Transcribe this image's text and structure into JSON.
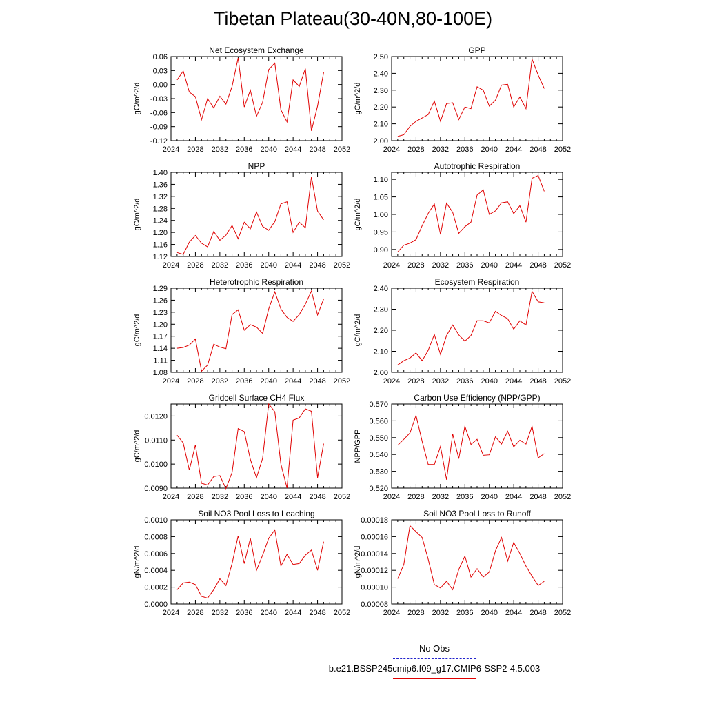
{
  "title": "Tibetan Plateau(30-40N,80-100E)",
  "legend": {
    "obs_label": "No Obs",
    "model_label": "b.e21.BSSP245cmip6.f09_g17.CMIP6-SSP2-4.5.003",
    "model_color": "#e00000",
    "obs_color": "#2222cc"
  },
  "chart_data": [
    {
      "type": "line",
      "title": "Net Ecosystem Exchange",
      "ylabel": "gC/m^2/d",
      "xlim": [
        2024,
        2052
      ],
      "xticks": [
        "2024",
        "2028",
        "2032",
        "2036",
        "2040",
        "2044",
        "2048",
        "2052"
      ],
      "ylim": [
        -0.12,
        0.06
      ],
      "yticks": [
        "-0.12",
        "-0.09",
        "-0.06",
        "-0.03",
        "0.00",
        "0.03",
        "0.06"
      ],
      "x": [
        2025,
        2026,
        2027,
        2028,
        2029,
        2030,
        2031,
        2032,
        2033,
        2034,
        2035,
        2036,
        2037,
        2038,
        2039,
        2040,
        2041,
        2042,
        2043,
        2044,
        2045,
        2046,
        2047,
        2048,
        2049
      ],
      "values": [
        0.01,
        0.029,
        -0.016,
        -0.026,
        -0.075,
        -0.03,
        -0.05,
        -0.025,
        -0.042,
        -0.004,
        0.057,
        -0.048,
        -0.012,
        -0.068,
        -0.038,
        0.032,
        0.046,
        -0.054,
        -0.08,
        0.01,
        -0.004,
        0.034,
        -0.099,
        -0.046,
        0.026
      ]
    },
    {
      "type": "line",
      "title": "GPP",
      "ylabel": "gC/m^2/d",
      "xlim": [
        2024,
        2052
      ],
      "xticks": [
        "2024",
        "2028",
        "2032",
        "2036",
        "2040",
        "2044",
        "2048",
        "2052"
      ],
      "ylim": [
        2.0,
        2.5
      ],
      "yticks": [
        "2.00",
        "2.10",
        "2.20",
        "2.30",
        "2.40",
        "2.50"
      ],
      "x": [
        2025,
        2026,
        2027,
        2028,
        2029,
        2030,
        2031,
        2032,
        2033,
        2034,
        2035,
        2036,
        2037,
        2038,
        2039,
        2040,
        2041,
        2042,
        2043,
        2044,
        2045,
        2046,
        2047,
        2048,
        2049
      ],
      "values": [
        2.025,
        2.035,
        2.085,
        2.115,
        2.135,
        2.155,
        2.235,
        2.115,
        2.22,
        2.225,
        2.125,
        2.2,
        2.19,
        2.32,
        2.3,
        2.205,
        2.24,
        2.33,
        2.335,
        2.2,
        2.26,
        2.19,
        2.485,
        2.39,
        2.31
      ]
    },
    {
      "type": "line",
      "title": "NPP",
      "ylabel": "gC/m^2/d",
      "xlim": [
        2024,
        2052
      ],
      "xticks": [
        "2024",
        "2028",
        "2032",
        "2036",
        "2040",
        "2044",
        "2048",
        "2052"
      ],
      "ylim": [
        1.12,
        1.4
      ],
      "yticks": [
        "1.12",
        "1.16",
        "1.20",
        "1.24",
        "1.28",
        "1.32",
        "1.36",
        "1.40"
      ],
      "x": [
        2025,
        2026,
        2027,
        2028,
        2029,
        2030,
        2031,
        2032,
        2033,
        2034,
        2035,
        2036,
        2037,
        2038,
        2039,
        2040,
        2041,
        2042,
        2043,
        2044,
        2045,
        2046,
        2047,
        2048,
        2049
      ],
      "values": [
        1.133,
        1.127,
        1.168,
        1.19,
        1.164,
        1.152,
        1.203,
        1.174,
        1.191,
        1.223,
        1.179,
        1.234,
        1.212,
        1.268,
        1.22,
        1.207,
        1.236,
        1.295,
        1.302,
        1.2,
        1.234,
        1.216,
        1.385,
        1.271,
        1.242
      ]
    },
    {
      "type": "line",
      "title": "Autotrophic Respiration",
      "ylabel": "gC/m^2/d",
      "xlim": [
        2024,
        2052
      ],
      "xticks": [
        "2024",
        "2028",
        "2032",
        "2036",
        "2040",
        "2044",
        "2048",
        "2052"
      ],
      "ylim": [
        0.88,
        1.12
      ],
      "yticks": [
        "0.90",
        "0.95",
        "1.00",
        "1.05",
        "1.10"
      ],
      "x": [
        2025,
        2026,
        2027,
        2028,
        2029,
        2030,
        2031,
        2032,
        2033,
        2034,
        2035,
        2036,
        2037,
        2038,
        2039,
        2040,
        2041,
        2042,
        2043,
        2044,
        2045,
        2046,
        2047,
        2048,
        2049
      ],
      "values": [
        0.893,
        0.912,
        0.918,
        0.928,
        0.968,
        1.003,
        1.03,
        0.943,
        1.032,
        1.006,
        0.946,
        0.965,
        0.978,
        1.055,
        1.07,
        1.0,
        1.01,
        1.033,
        1.036,
        1.002,
        1.025,
        0.978,
        1.103,
        1.111,
        1.066
      ]
    },
    {
      "type": "line",
      "title": "Heterotrophic Respiration",
      "ylabel": "gC/m^2/d",
      "xlim": [
        2024,
        2052
      ],
      "xticks": [
        "2024",
        "2028",
        "2032",
        "2036",
        "2040",
        "2044",
        "2048",
        "2052"
      ],
      "ylim": [
        1.08,
        1.29
      ],
      "yticks": [
        "1.08",
        "1.11",
        "1.14",
        "1.17",
        "1.20",
        "1.23",
        "1.26",
        "1.29"
      ],
      "x": [
        2025,
        2026,
        2027,
        2028,
        2029,
        2030,
        2031,
        2032,
        2033,
        2034,
        2035,
        2036,
        2037,
        2038,
        2039,
        2040,
        2041,
        2042,
        2043,
        2044,
        2045,
        2046,
        2047,
        2048,
        2049
      ],
      "values": [
        1.14,
        1.142,
        1.148,
        1.163,
        1.083,
        1.098,
        1.15,
        1.143,
        1.139,
        1.224,
        1.236,
        1.185,
        1.199,
        1.193,
        1.177,
        1.238,
        1.281,
        1.238,
        1.217,
        1.207,
        1.224,
        1.25,
        1.283,
        1.223,
        1.263
      ]
    },
    {
      "type": "line",
      "title": "Ecosystem Respiration",
      "ylabel": "gC/m^2/d",
      "xlim": [
        2024,
        2052
      ],
      "xticks": [
        "2024",
        "2028",
        "2032",
        "2036",
        "2040",
        "2044",
        "2048",
        "2052"
      ],
      "ylim": [
        2.0,
        2.4
      ],
      "yticks": [
        "2.00",
        "2.10",
        "2.20",
        "2.30",
        "2.40"
      ],
      "x": [
        2025,
        2026,
        2027,
        2028,
        2029,
        2030,
        2031,
        2032,
        2033,
        2034,
        2035,
        2036,
        2037,
        2038,
        2039,
        2040,
        2041,
        2042,
        2043,
        2044,
        2045,
        2046,
        2047,
        2048,
        2049
      ],
      "values": [
        2.035,
        2.055,
        2.068,
        2.092,
        2.055,
        2.105,
        2.18,
        2.085,
        2.175,
        2.225,
        2.178,
        2.148,
        2.175,
        2.245,
        2.245,
        2.235,
        2.29,
        2.27,
        2.255,
        2.205,
        2.245,
        2.225,
        2.385,
        2.335,
        2.33
      ]
    },
    {
      "type": "line",
      "title": "Gridcell Surface CH4 Flux",
      "ylabel": "gC/m^2/d",
      "xlim": [
        2024,
        2052
      ],
      "xticks": [
        "2024",
        "2028",
        "2032",
        "2036",
        "2040",
        "2044",
        "2048",
        "2052"
      ],
      "ylim": [
        0.009,
        0.0125
      ],
      "yticks": [
        "0.0090",
        "0.0100",
        "0.0110",
        "0.0120"
      ],
      "x": [
        2025,
        2026,
        2027,
        2028,
        2029,
        2030,
        2031,
        2032,
        2033,
        2034,
        2035,
        2036,
        2037,
        2038,
        2039,
        2040,
        2041,
        2042,
        2043,
        2044,
        2045,
        2046,
        2047,
        2048,
        2049
      ],
      "values": [
        0.0112,
        0.01088,
        0.00975,
        0.0108,
        0.0092,
        0.00913,
        0.00948,
        0.00952,
        0.00898,
        0.00965,
        0.01148,
        0.01135,
        0.0102,
        0.00943,
        0.01024,
        0.0125,
        0.01218,
        0.01,
        0.009,
        0.01183,
        0.01192,
        0.0123,
        0.0122,
        0.00943,
        0.01085
      ]
    },
    {
      "type": "line",
      "title": "Carbon Use Efficiency (NPP/GPP)",
      "ylabel": "NPP/GPP",
      "xlim": [
        2024,
        2052
      ],
      "xticks": [
        "2024",
        "2028",
        "2032",
        "2036",
        "2040",
        "2044",
        "2048",
        "2052"
      ],
      "ylim": [
        0.52,
        0.57
      ],
      "yticks": [
        "0.520",
        "0.530",
        "0.540",
        "0.550",
        "0.560",
        "0.570"
      ],
      "x": [
        2025,
        2026,
        2027,
        2028,
        2029,
        2030,
        2031,
        2032,
        2033,
        2034,
        2035,
        2036,
        2037,
        2038,
        2039,
        2040,
        2041,
        2042,
        2043,
        2044,
        2045,
        2046,
        2047,
        2048,
        2049
      ],
      "values": [
        0.5455,
        0.549,
        0.5528,
        0.5632,
        0.5478,
        0.534,
        0.534,
        0.5448,
        0.525,
        0.5522,
        0.5375,
        0.5568,
        0.546,
        0.549,
        0.5395,
        0.5398,
        0.5505,
        0.5462,
        0.5538,
        0.5445,
        0.5485,
        0.5462,
        0.5568,
        0.538,
        0.5405
      ]
    },
    {
      "type": "line",
      "title": "Soil NO3 Pool Loss to Leaching",
      "ylabel": "gN/m^2/d",
      "xlim": [
        2024,
        2052
      ],
      "xticks": [
        "2024",
        "2028",
        "2032",
        "2036",
        "2040",
        "2044",
        "2048",
        "2052"
      ],
      "ylim": [
        0.0,
        0.001
      ],
      "yticks": [
        "0.0000",
        "0.0002",
        "0.0004",
        "0.0006",
        "0.0008",
        "0.0010"
      ],
      "x": [
        2025,
        2026,
        2027,
        2028,
        2029,
        2030,
        2031,
        2032,
        2033,
        2034,
        2035,
        2036,
        2037,
        2038,
        2039,
        2040,
        2041,
        2042,
        2043,
        2044,
        2045,
        2046,
        2047,
        2048,
        2049
      ],
      "values": [
        0.00017,
        0.00025,
        0.00026,
        0.00023,
        9e-05,
        7e-05,
        0.00017,
        0.0003,
        0.00022,
        0.00048,
        0.00081,
        0.00048,
        0.00078,
        0.0004,
        0.00058,
        0.00078,
        0.00088,
        0.00045,
        0.00059,
        0.00047,
        0.00048,
        0.00058,
        0.00064,
        0.0004,
        0.00074
      ]
    },
    {
      "type": "line",
      "title": "Soil NO3 Pool Loss to Runoff",
      "ylabel": "gN/m^2/d",
      "xlim": [
        2024,
        2052
      ],
      "xticks": [
        "2024",
        "2028",
        "2032",
        "2036",
        "2040",
        "2044",
        "2048",
        "2052"
      ],
      "ylim": [
        8e-05,
        0.00018
      ],
      "yticks": [
        "0.00008",
        "0.00010",
        "0.00012",
        "0.00014",
        "0.00016",
        "0.00018"
      ],
      "x": [
        2025,
        2026,
        2027,
        2028,
        2029,
        2030,
        2031,
        2032,
        2033,
        2034,
        2035,
        2036,
        2037,
        2038,
        2039,
        2040,
        2041,
        2042,
        2043,
        2044,
        2045,
        2046,
        2047,
        2048,
        2049
      ],
      "values": [
        0.00011,
        0.000127,
        0.000173,
        0.000166,
        0.000159,
        0.000133,
        0.000103,
        9.9e-05,
        0.000107,
        9.7e-05,
        0.000121,
        0.000137,
        0.000112,
        0.000122,
        0.000112,
        0.000118,
        0.000143,
        0.000159,
        0.000131,
        0.000153,
        0.00014,
        0.000125,
        0.000113,
        0.000102,
        0.000107
      ]
    }
  ]
}
